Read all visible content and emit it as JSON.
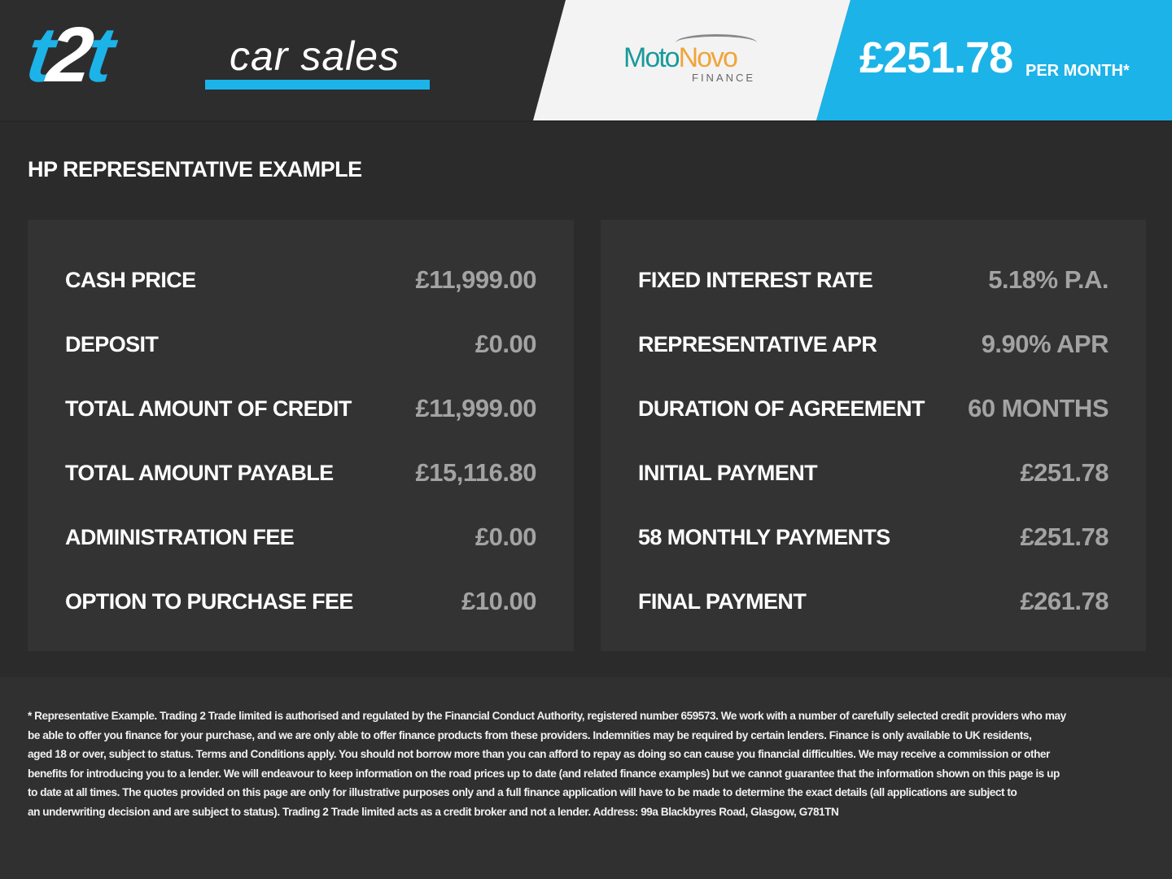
{
  "header": {
    "logo": {
      "part1": "t",
      "part2": "2",
      "part3": "t",
      "text": "car sales"
    },
    "lender_logo": {
      "name_part1": "Moto",
      "name_part2": "Novo",
      "subtitle": "FINANCE"
    },
    "monthly_price": "£251.78",
    "per_month_label": "PER MONTH*"
  },
  "colors": {
    "accent": "#1cb3e8",
    "background": "#2b2b2c",
    "panel": "#333334",
    "value_text": "#a3a3a3"
  },
  "section_title": "HP REPRESENTATIVE EXAMPLE",
  "left_panel": [
    {
      "label": "CASH PRICE",
      "value": "£11,999.00"
    },
    {
      "label": "DEPOSIT",
      "value": "£0.00"
    },
    {
      "label": "TOTAL AMOUNT OF CREDIT",
      "value": "£11,999.00"
    },
    {
      "label": "TOTAL AMOUNT PAYABLE",
      "value": "£15,116.80"
    },
    {
      "label": "ADMINISTRATION FEE",
      "value": "£0.00"
    },
    {
      "label": "OPTION TO PURCHASE FEE",
      "value": "£10.00"
    }
  ],
  "right_panel": [
    {
      "label": "FIXED INTEREST RATE",
      "value": "5.18% P.A."
    },
    {
      "label": "REPRESENTATIVE APR",
      "value": "9.90% APR"
    },
    {
      "label": "DURATION OF AGREEMENT",
      "value": "60 MONTHS"
    },
    {
      "label": "INITIAL PAYMENT",
      "value": "£251.78"
    },
    {
      "label": "58 MONTHLY PAYMENTS",
      "value": "£251.78"
    },
    {
      "label": "FINAL PAYMENT",
      "value": "£261.78"
    }
  ],
  "disclaimer_lines": [
    "* Representative Example. Trading 2 Trade limited is authorised and regulated by the Financial Conduct Authority, registered number 659573. We work with a number of carefully selected credit providers who may",
    "be able to offer you finance for your purchase, and we are only able to offer finance products from these providers. Indemnities may be required by certain lenders. Finance is only available to UK residents,",
    "aged 18 or over, subject to status. Terms and Conditions apply. You should not borrow more than you can afford to repay as doing so can cause you financial difficulties. We may receive a commission or other",
    "benefits for introducing you to a lender. We will endeavour to keep information on the road prices up to date (and related finance examples) but we cannot guarantee that the information shown on this page is up",
    "to date at all times. The quotes provided on this page are only for illustrative purposes only and a full finance application will have to be made to determine the exact details (all applications are subject to",
    "an underwriting decision and are subject to status). Trading 2 Trade limited acts as a credit broker and not a lender. Address: 99a Blackbyres Road, Glasgow, G781TN"
  ]
}
